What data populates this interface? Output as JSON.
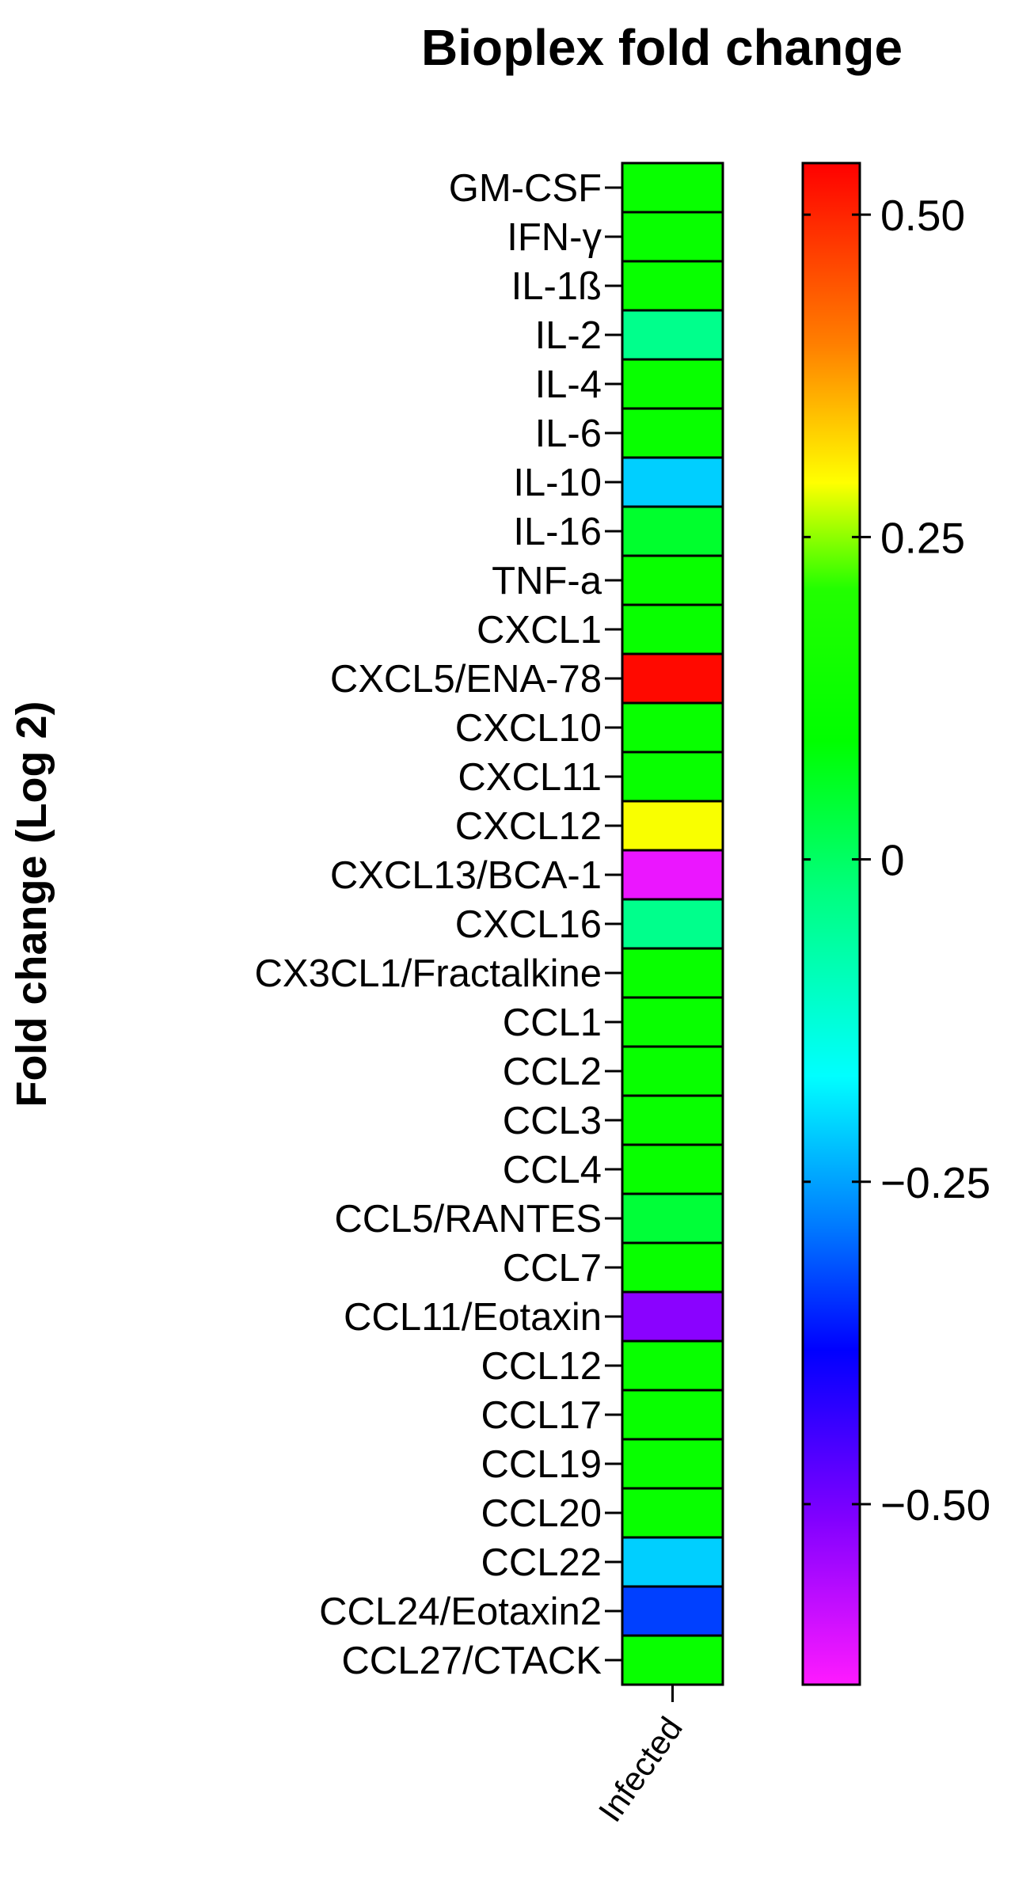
{
  "chart_data": {
    "type": "heatmap",
    "title": "Bioplex fold change",
    "ylabel": "Fold change (Log 2)",
    "columns": [
      "Infected"
    ],
    "rows": [
      "GM-CSF",
      "IFN-γ",
      "IL-1ß",
      "IL-2",
      "IL-4",
      "IL-6",
      "IL-10",
      "IL-16",
      "TNF-a",
      "CXCL1",
      "CXCL5/ENA-78",
      "CXCL10",
      "CXCL11",
      "CXCL12",
      "CXCL13/BCA-1",
      "CXCL16",
      "CX3CL1/Fractalkine",
      "CCL1",
      "CCL2",
      "CCL3",
      "CCL4",
      "CCL5/RANTES",
      "CCL7",
      "CCL11/Eotaxin",
      "CCL12",
      "CCL17",
      "CCL19",
      "CCL20",
      "CCL22",
      "CCL24/Eotaxin2",
      "CCL27/CTACK"
    ],
    "values": [
      0.12,
      0.12,
      0.12,
      -0.04,
      0.12,
      0.12,
      -0.21,
      0.05,
      0.12,
      0.12,
      0.53,
      0.12,
      0.12,
      0.29,
      -0.62,
      -0.04,
      0.12,
      0.12,
      0.12,
      0.12,
      0.12,
      0.04,
      0.12,
      -0.52,
      0.12,
      0.12,
      0.12,
      0.12,
      -0.21,
      -0.33,
      0.12
    ],
    "colorbar": {
      "range": [
        -0.64,
        0.54
      ],
      "ticks": [
        0.5,
        0.25,
        0,
        -0.25,
        -0.5
      ],
      "tick_labels": [
        "0.50",
        "0.25",
        "0",
        "−0.25",
        "−0.50"
      ],
      "colormap": "rainbow (magenta–blue–cyan–green–yellow–red)"
    },
    "legend": "colorbar-right",
    "grid": false
  }
}
